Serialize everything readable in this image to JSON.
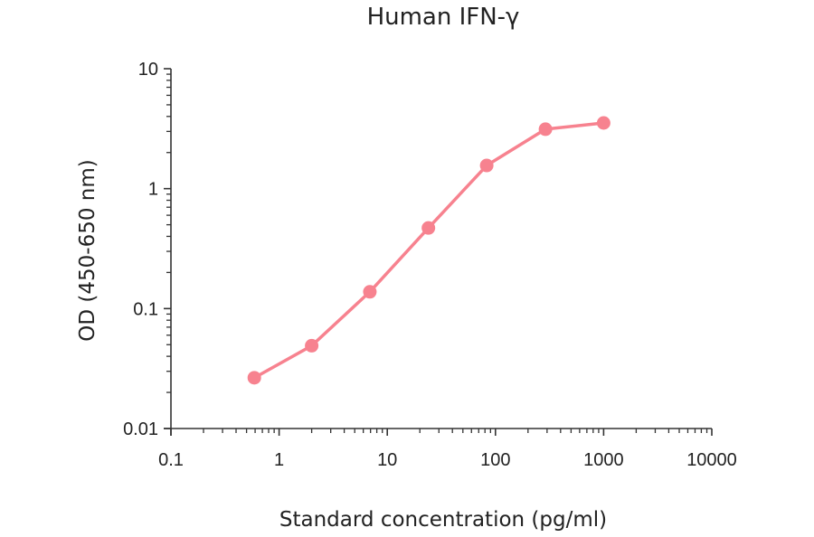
{
  "chart_data": {
    "type": "line",
    "title": "Human IFN-γ",
    "xlabel": "Standard concentration (pg/ml)",
    "ylabel": "OD (450-650 nm)",
    "xscale": "log",
    "yscale": "log",
    "xlim": [
      0.1,
      10000
    ],
    "ylim": [
      0.01,
      10
    ],
    "x_ticks": [
      "0.1",
      "1",
      "10",
      "100",
      "1000",
      "10000"
    ],
    "y_ticks": [
      "0.01",
      "0.1",
      "1",
      "10"
    ],
    "grid": false,
    "legend": null,
    "series": [
      {
        "name": "Human IFN-γ",
        "color": "#f7828f",
        "marker": "circle",
        "x": [
          0.59,
          2.0,
          6.9,
          24,
          83,
          290,
          1000
        ],
        "y": [
          0.0265,
          0.049,
          0.138,
          0.47,
          1.56,
          3.13,
          3.53
        ]
      }
    ]
  }
}
